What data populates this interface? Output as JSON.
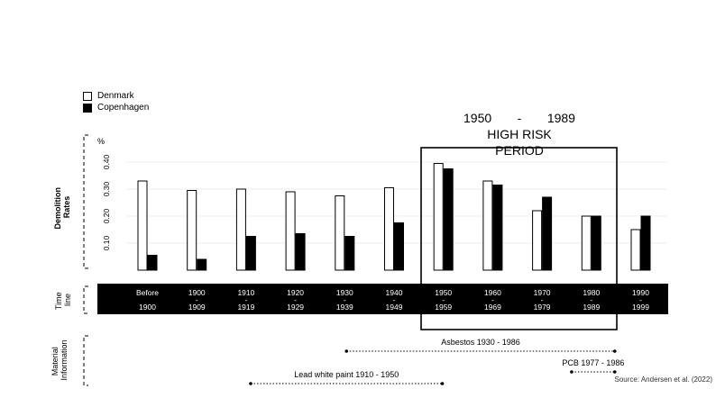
{
  "chart_data": {
    "type": "bar",
    "unit": "%",
    "ylabel": "Demolition Rates",
    "yticks": [
      "0.10",
      "0.20",
      "0.30",
      "0.40"
    ],
    "ylim": [
      0,
      0.45
    ],
    "categories": [
      {
        "top": "Before",
        "mid": "",
        "bottom": "1900"
      },
      {
        "top": "1900",
        "mid": "-",
        "bottom": "1909"
      },
      {
        "top": "1910",
        "mid": "-",
        "bottom": "1919"
      },
      {
        "top": "1920",
        "mid": "-",
        "bottom": "1929"
      },
      {
        "top": "1930",
        "mid": "-",
        "bottom": "1939"
      },
      {
        "top": "1940",
        "mid": "-",
        "bottom": "1949"
      },
      {
        "top": "1950",
        "mid": "-",
        "bottom": "1959"
      },
      {
        "top": "1960",
        "mid": "-",
        "bottom": "1969"
      },
      {
        "top": "1970",
        "mid": "-",
        "bottom": "1979"
      },
      {
        "top": "1980",
        "mid": "-",
        "bottom": "1989"
      },
      {
        "top": "1990",
        "mid": "-",
        "bottom": "1999"
      }
    ],
    "series": [
      {
        "name": "Denmark",
        "color": "#ffffff",
        "values": [
          0.33,
          0.295,
          0.3,
          0.29,
          0.275,
          0.305,
          0.395,
          0.33,
          0.22,
          0.2,
          0.15
        ]
      },
      {
        "name": "Copenhagen",
        "color": "#000000",
        "values": [
          0.055,
          0.04,
          0.125,
          0.135,
          0.125,
          0.175,
          0.375,
          0.315,
          0.27,
          0.2,
          0.2
        ]
      }
    ],
    "legend": {
      "position": "top-left"
    },
    "grid": true,
    "timeline_label": "Time line",
    "highlight": {
      "start": "1950",
      "dash": "-",
      "end": "1989",
      "title": "HIGH RISK PERIOD",
      "from_index": 6,
      "to_index": 9
    },
    "material_label": "Material Information",
    "materials": [
      {
        "label": "Asbestos 1930 - 1986",
        "start": 1930,
        "end": 1986
      },
      {
        "label": "PCB 1977 - 1986",
        "start": 1977,
        "end": 1986
      },
      {
        "label": "Lead white paint 1910 - 1950",
        "start": 1910,
        "end": 1950
      }
    ],
    "source": "Source: Andersen et al. (2022)"
  }
}
